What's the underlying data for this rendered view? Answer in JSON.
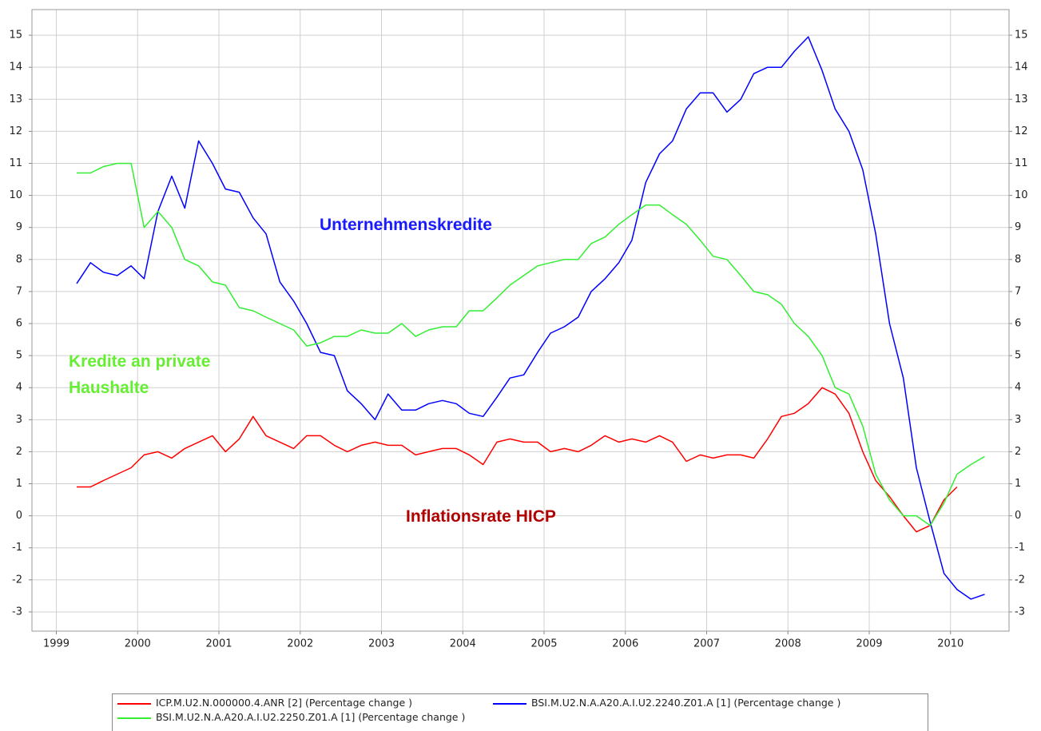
{
  "chart_data": {
    "type": "line",
    "annotations": [
      {
        "text": "Unternehmenskredite",
        "color": "#1a1aff"
      },
      {
        "text": "Kredite an private Haushalte",
        "color": "#66ee33"
      },
      {
        "text": "Inflationsrate HICP",
        "color": "#b00000"
      }
    ],
    "x": [
      1999.25,
      1999.42,
      1999.58,
      1999.75,
      1999.92,
      2000.08,
      2000.25,
      2000.42,
      2000.58,
      2000.75,
      2000.92,
      2001.08,
      2001.25,
      2001.42,
      2001.58,
      2001.75,
      2001.92,
      2002.08,
      2002.25,
      2002.42,
      2002.58,
      2002.75,
      2002.92,
      2003.08,
      2003.25,
      2003.42,
      2003.58,
      2003.75,
      2003.92,
      2004.08,
      2004.25,
      2004.42,
      2004.58,
      2004.75,
      2004.92,
      2005.08,
      2005.25,
      2005.42,
      2005.58,
      2005.75,
      2005.92,
      2006.08,
      2006.25,
      2006.42,
      2006.58,
      2006.75,
      2006.92,
      2007.08,
      2007.25,
      2007.42,
      2007.58,
      2007.75,
      2007.92,
      2008.08,
      2008.25,
      2008.42,
      2008.58,
      2008.75,
      2008.92,
      2009.08,
      2009.25,
      2009.42,
      2009.58,
      2009.75,
      2009.92,
      2010.08,
      2010.25,
      2010.42
    ],
    "series": [
      {
        "name": "ICP.M.U2.N.000000.4.ANR [2] (Percentage change )",
        "color": "#ff0000",
        "values": [
          0.9,
          0.9,
          1.1,
          1.3,
          1.5,
          1.9,
          2.0,
          1.8,
          2.1,
          2.3,
          2.5,
          2.0,
          2.4,
          3.1,
          2.5,
          2.3,
          2.1,
          2.5,
          2.5,
          2.2,
          2.0,
          2.2,
          2.3,
          2.2,
          2.2,
          1.9,
          2.0,
          2.1,
          2.1,
          1.9,
          1.6,
          2.3,
          2.4,
          2.3,
          2.3,
          2.0,
          2.1,
          2.0,
          2.2,
          2.5,
          2.3,
          2.4,
          2.3,
          2.5,
          2.3,
          1.7,
          1.9,
          1.8,
          1.9,
          1.9,
          1.8,
          2.4,
          3.1,
          3.2,
          3.5,
          4.0,
          3.8,
          3.2,
          2.0,
          1.1,
          0.6,
          0.0,
          -0.5,
          -0.3,
          0.5,
          0.9,
          null,
          null
        ]
      },
      {
        "name": "BSI.M.U2.N.A.A20.A.I.U2.2240.Z01.A [1] (Percentage change )",
        "color": "#0000ff",
        "values": [
          7.25,
          7.9,
          7.6,
          7.5,
          7.8,
          7.4,
          9.5,
          10.6,
          9.6,
          11.7,
          11.0,
          10.2,
          10.1,
          9.3,
          8.8,
          7.3,
          6.7,
          6.0,
          5.1,
          5.0,
          3.9,
          3.5,
          3.0,
          3.8,
          3.3,
          3.3,
          3.5,
          3.6,
          3.5,
          3.2,
          3.1,
          3.7,
          4.3,
          4.4,
          5.1,
          5.7,
          5.9,
          6.2,
          7.0,
          7.4,
          7.9,
          8.6,
          10.4,
          11.3,
          11.7,
          12.7,
          13.2,
          13.2,
          12.6,
          13.0,
          13.8,
          14.0,
          14.0,
          14.5,
          14.95,
          13.9,
          12.7,
          12.0,
          10.8,
          8.8,
          6.0,
          4.3,
          1.5,
          -0.2,
          -1.8,
          -2.3,
          -2.6,
          -2.45
        ]
      },
      {
        "name": "BSI.M.U2.N.A.A20.A.I.U2.2250.Z01.A [1] (Percentage change )",
        "color": "#33ee33",
        "values": [
          10.7,
          10.7,
          10.9,
          11.0,
          11.0,
          9.0,
          9.5,
          9.0,
          8.0,
          7.8,
          7.3,
          7.2,
          6.5,
          6.4,
          6.2,
          6.0,
          5.8,
          5.3,
          5.4,
          5.6,
          5.6,
          5.8,
          5.7,
          5.7,
          6.0,
          5.6,
          5.8,
          5.9,
          5.9,
          6.4,
          6.4,
          6.8,
          7.2,
          7.5,
          7.8,
          7.9,
          8.0,
          8.0,
          8.5,
          8.7,
          9.1,
          9.4,
          9.7,
          9.7,
          9.4,
          9.1,
          8.6,
          8.1,
          8.0,
          7.5,
          7.0,
          6.9,
          6.6,
          6.0,
          5.6,
          5.0,
          4.0,
          3.8,
          2.8,
          1.3,
          0.5,
          0.0,
          0.0,
          -0.3,
          0.4,
          1.3,
          1.6,
          1.85
        ]
      }
    ],
    "xlim": [
      1998.7,
      2010.72
    ],
    "xticks": [
      1999,
      2000,
      2001,
      2002,
      2003,
      2004,
      2005,
      2006,
      2007,
      2008,
      2009,
      2010
    ],
    "ylim": [
      -3.6,
      15.8
    ],
    "yticks": [
      -3,
      -2,
      -1,
      0,
      1,
      2,
      3,
      4,
      5,
      6,
      7,
      8,
      9,
      10,
      11,
      12,
      13,
      14,
      15
    ],
    "grid": true
  }
}
